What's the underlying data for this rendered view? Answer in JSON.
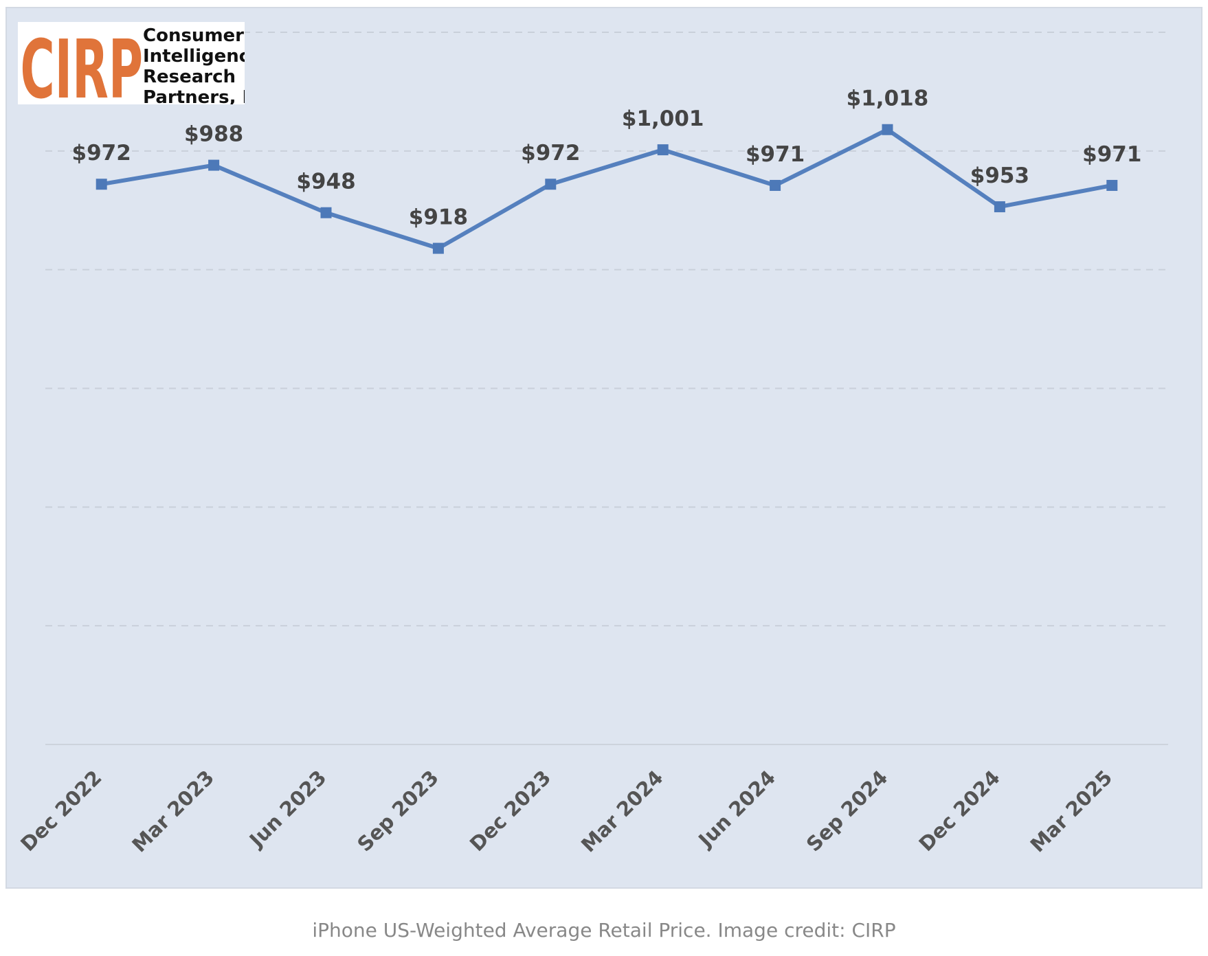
{
  "chart_data": {
    "type": "line",
    "categories": [
      "Dec 2022",
      "Mar 2023",
      "Jun 2023",
      "Sep 2023",
      "Dec 2023",
      "Mar 2024",
      "Jun 2024",
      "Sep 2024",
      "Dec 2024",
      "Mar 2025"
    ],
    "values": [
      972,
      988,
      948,
      918,
      972,
      1001,
      971,
      1018,
      953,
      971
    ],
    "data_labels": [
      "$972",
      "$988",
      "$948",
      "$918",
      "$972",
      "$1,001",
      "$971",
      "$1,018",
      "$953",
      "$971"
    ],
    "ylim": [
      500,
      1100
    ],
    "y_gridlines": [
      600,
      700,
      800,
      900,
      1000,
      1100
    ],
    "grid": true,
    "legend": "none",
    "colors": {
      "line": "#5580be",
      "marker": "#4d79b8",
      "background": "#dee5f0",
      "grid": "#c9d0da"
    }
  },
  "logo": {
    "mark": "CIRP",
    "lines": [
      "Consumer",
      "Intelligence",
      "Research",
      "Partners, LLC"
    ],
    "mark_color": "#e0743a"
  },
  "caption": "iPhone US-Weighted Average Retail Price. Image credit: CIRP"
}
